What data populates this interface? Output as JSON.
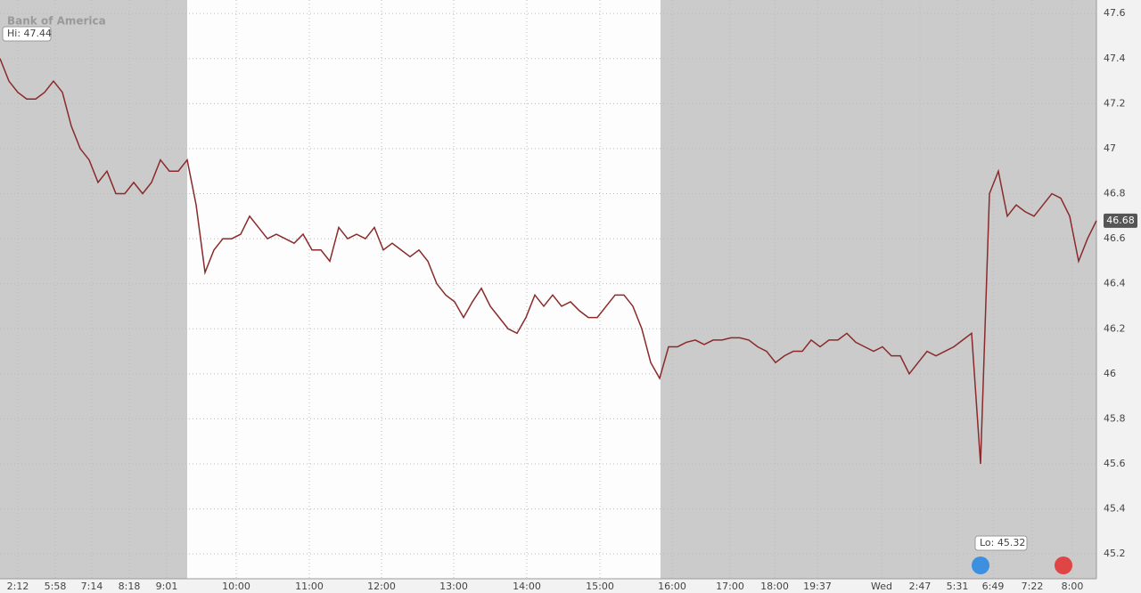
{
  "chart_data": {
    "type": "line",
    "logo": "Bank of America",
    "hi_label": "Hi: 47.44",
    "lo_label": "Lo: 45.32",
    "series": [
      {
        "color": "#8a2a2a",
        "values": [
          47.4,
          47.3,
          47.25,
          47.22,
          47.22,
          47.25,
          47.3,
          47.25,
          47.1,
          47.0,
          46.95,
          46.85,
          46.9,
          46.8,
          46.8,
          46.85,
          46.8,
          46.85,
          46.95,
          46.9,
          46.9,
          46.95,
          46.75,
          46.45,
          46.55,
          46.6,
          46.6,
          46.62,
          46.7,
          46.65,
          46.6,
          46.62,
          46.6,
          46.58,
          46.62,
          46.55,
          46.55,
          46.5,
          46.65,
          46.6,
          46.62,
          46.6,
          46.65,
          46.55,
          46.58,
          46.55,
          46.52,
          46.55,
          46.5,
          46.4,
          46.35,
          46.32,
          46.25,
          46.32,
          46.38,
          46.3,
          46.25,
          46.2,
          46.18,
          46.25,
          46.35,
          46.3,
          46.35,
          46.3,
          46.32,
          46.28,
          46.25,
          46.25,
          46.3,
          46.35,
          46.35,
          46.3,
          46.2,
          46.05,
          45.98,
          46.12,
          46.12,
          46.14,
          46.15,
          46.13,
          46.15,
          46.15,
          46.16,
          46.16,
          46.15,
          46.12,
          46.1,
          46.05,
          46.08,
          46.1,
          46.1,
          46.15,
          46.12,
          46.15,
          46.15,
          46.18,
          46.14,
          46.12,
          46.1,
          46.12,
          46.08,
          46.08,
          46.0,
          46.05,
          46.1,
          46.08,
          46.1,
          46.12,
          46.15,
          46.18,
          45.6,
          46.8,
          46.9,
          46.7,
          46.75,
          46.72,
          46.7,
          46.75,
          46.8,
          46.78,
          46.7,
          46.5,
          46.6,
          46.68
        ]
      }
    ],
    "last_value_label": "46.68",
    "xlim": [
      0,
      123
    ],
    "xticks": [
      {
        "value": 2,
        "label": "2:12"
      },
      {
        "value": 6.2,
        "label": "5:58"
      },
      {
        "value": 10.3,
        "label": "7:14"
      },
      {
        "value": 14.5,
        "label": "8:18"
      },
      {
        "value": 18.7,
        "label": "9:01"
      },
      {
        "value": 26.5,
        "label": "10:00"
      },
      {
        "value": 34.7,
        "label": "11:00"
      },
      {
        "value": 42.8,
        "label": "12:00"
      },
      {
        "value": 50.9,
        "label": "13:00"
      },
      {
        "value": 59.1,
        "label": "14:00"
      },
      {
        "value": 67.3,
        "label": "15:00"
      },
      {
        "value": 75.4,
        "label": "16:00"
      },
      {
        "value": 81.9,
        "label": "17:00"
      },
      {
        "value": 86.9,
        "label": "18:00"
      },
      {
        "value": 91.7,
        "label": "19:37"
      },
      {
        "value": 98.9,
        "label": "Wed"
      },
      {
        "value": 103.2,
        "label": "2:47"
      },
      {
        "value": 107.4,
        "label": "5:31"
      },
      {
        "value": 111.4,
        "label": "6:49"
      },
      {
        "value": 115.8,
        "label": "7:22"
      },
      {
        "value": 120.3,
        "label": "8:00"
      }
    ],
    "ylim": [
      45.09,
      47.66
    ],
    "yticks": [
      45.2,
      45.4,
      45.6,
      45.8,
      46,
      46.2,
      46.4,
      46.6,
      46.8,
      47,
      47.2,
      47.4,
      47.6
    ],
    "grid": true
  }
}
